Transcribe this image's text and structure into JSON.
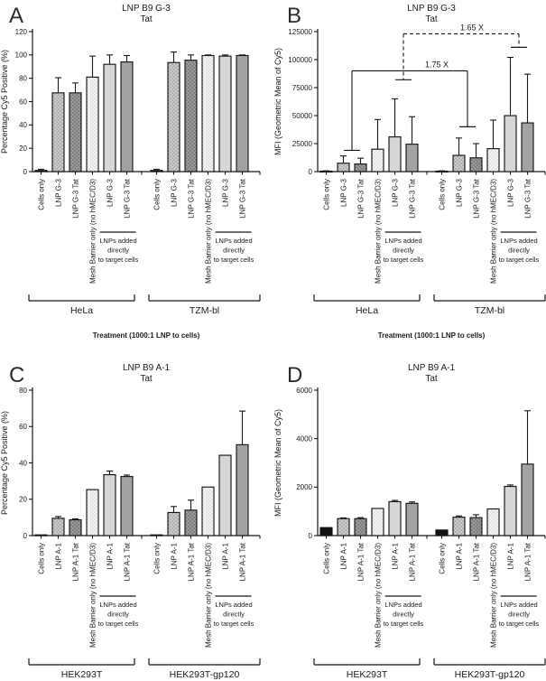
{
  "palette": {
    "outline": "#161616",
    "text": "#1a1a1a",
    "black_fill": "#121212",
    "dot_light_bg": "#cbcbcb",
    "dot_light_dot": "#8f8f8f",
    "dot_dark_bg": "#9a9a9a",
    "dot_dark_dot": "#5f5f5f",
    "stipple_bg": "#f5f5f5",
    "stipple_dot": "#cccccc",
    "gray_light": "#d6d6d6",
    "gray_mid": "#a2a2a2"
  },
  "chart_data": [
    {
      "type": "bar",
      "panel_letter": "A",
      "title": "LNP B9 G-3",
      "subtitle": "Tat",
      "ylabel": "Percentage Cy5 Positive (%)",
      "xlabel": "Treatment (1000:1 LNP to cells)",
      "ylim": [
        0,
        120
      ],
      "ytick_step": 20,
      "subcaption_lines": [
        "LNPs added",
        "directly",
        "to target cells"
      ],
      "groups": [
        {
          "name": "HeLa",
          "bars": [
            {
              "label": "Cells only",
              "value": 1,
              "err": 1,
              "style": "black"
            },
            {
              "label": "LNP G-3",
              "value": 67.5,
              "err": 13,
              "style": "dot_light"
            },
            {
              "label": "LNP G-3 Tat",
              "value": 67.5,
              "err": 8.5,
              "style": "dot_dark"
            },
            {
              "label": "Mesh Barrier only (no hMEC/D3)",
              "value": 81,
              "err": 18,
              "style": "stipple"
            },
            {
              "label": "LNP G-3",
              "value": 92,
              "err": 8,
              "style": "gray_light"
            },
            {
              "label": "LNP G-3 Tat",
              "value": 94,
              "err": 5.5,
              "style": "gray_mid"
            }
          ]
        },
        {
          "name": "TZM-bl",
          "bars": [
            {
              "label": "Cells only",
              "value": 1,
              "err": 1,
              "style": "black"
            },
            {
              "label": "LNP G-3",
              "value": 93.5,
              "err": 9,
              "style": "dot_light"
            },
            {
              "label": "LNP G-3 Tat",
              "value": 95.5,
              "err": 4.5,
              "style": "dot_dark"
            },
            {
              "label": "Mesh Barrier only (no hMEC/D3)",
              "value": 99.5,
              "err": 0.5,
              "style": "stipple"
            },
            {
              "label": "LNP G-3",
              "value": 99,
              "err": 1,
              "style": "gray_light"
            },
            {
              "label": "LNP G-3 Tat",
              "value": 99.5,
              "err": 0.5,
              "style": "gray_mid"
            }
          ]
        }
      ]
    },
    {
      "type": "bar",
      "panel_letter": "B",
      "title": "LNP B9 G-3",
      "subtitle": "Tat",
      "ylabel": "MFI (Geometric Mean of Cy5)",
      "xlabel": "Treatment (1000:1 LNP to cells)",
      "ylim": [
        0,
        125000
      ],
      "ytick_step": 25000,
      "subcaption_lines": [
        "LNPs added",
        "directly",
        "to target cells"
      ],
      "groups": [
        {
          "name": "HeLa",
          "bars": [
            {
              "label": "Cells only",
              "value": 400,
              "err": 300,
              "style": "black"
            },
            {
              "label": "LNP G-3",
              "value": 7500,
              "err": 6500,
              "style": "dot_light"
            },
            {
              "label": "LNP G-3 Tat",
              "value": 6800,
              "err": 5200,
              "style": "dot_dark"
            },
            {
              "label": "Mesh Barrier only (no hMEC/D3)",
              "value": 20000,
              "err": 26500,
              "style": "stipple"
            },
            {
              "label": "LNP G-3",
              "value": 31000,
              "err": 34000,
              "style": "gray_light"
            },
            {
              "label": "LNP G-3 Tat",
              "value": 24500,
              "err": 24500,
              "style": "gray_mid"
            }
          ]
        },
        {
          "name": "TZM-bl",
          "bars": [
            {
              "label": "Cells only",
              "value": 400,
              "err": 300,
              "style": "black"
            },
            {
              "label": "LNP G-3",
              "value": 14500,
              "err": 15500,
              "style": "dot_light"
            },
            {
              "label": "LNP G-3 Tat",
              "value": 12300,
              "err": 12700,
              "style": "dot_dark"
            },
            {
              "label": "Mesh Barrier only (no hMEC/D3)",
              "value": 20500,
              "err": 25500,
              "style": "stipple"
            },
            {
              "label": "LNP G-3",
              "value": 50000,
              "err": 52000,
              "style": "gray_light"
            },
            {
              "label": "LNP G-3 Tat",
              "value": 43500,
              "err": 43500,
              "style": "gray_mid"
            }
          ]
        }
      ],
      "comparisons": [
        {
          "label": "1.75 X",
          "line": "solid",
          "from_bar": 1.5,
          "to_bar": 7.5,
          "y_top": 90000,
          "cap_from": 19000,
          "cap_to": 40000,
          "label_dx": 30
        },
        {
          "label": "1.65 X",
          "line": "dashed",
          "from_bar": 4.5,
          "to_bar": 10.5,
          "y_top": 123000,
          "cap_from": 82000,
          "cap_to": 111000,
          "label_dx": 12
        }
      ]
    },
    {
      "type": "bar",
      "panel_letter": "C",
      "title": "LNP B9 A-1",
      "subtitle": "Tat",
      "ylabel": "Percentage Cy5 Positive (%)",
      "ylim": [
        0,
        80
      ],
      "ytick_step": 20,
      "subcaption_lines": [
        "LNPs added",
        "directly",
        "to target cells"
      ],
      "groups": [
        {
          "name": "HEK293T",
          "bars": [
            {
              "label": "Cells only",
              "value": 0.4,
              "err": 0,
              "style": "black"
            },
            {
              "label": "LNP A-1",
              "value": 9.5,
              "err": 1,
              "style": "dot_light"
            },
            {
              "label": "LNP A-1 Tat",
              "value": 8.7,
              "err": 0.5,
              "style": "dot_dark"
            },
            {
              "label": "Mesh Barrier only (no hMEC/D3)",
              "value": 25.3,
              "err": 0,
              "style": "stipple"
            },
            {
              "label": "LNP A-1",
              "value": 33.5,
              "err": 2,
              "style": "gray_light"
            },
            {
              "label": "LNP A-1 Tat",
              "value": 32.5,
              "err": 0.8,
              "style": "gray_mid"
            }
          ]
        },
        {
          "name": "HEK293T-gp120",
          "bars": [
            {
              "label": "Cells only",
              "value": 0.4,
              "err": 0,
              "style": "black"
            },
            {
              "label": "LNP A-1",
              "value": 12.7,
              "err": 3.3,
              "style": "dot_light"
            },
            {
              "label": "LNP A-1 Tat",
              "value": 14,
              "err": 5.5,
              "style": "dot_dark"
            },
            {
              "label": "Mesh Barrier only (no hMEC/D3)",
              "value": 26.7,
              "err": 0,
              "style": "stipple"
            },
            {
              "label": "LNP A-1",
              "value": 44.2,
              "err": 0,
              "style": "gray_light"
            },
            {
              "label": "LNP A-1 Tat",
              "value": 50,
              "err": 18.5,
              "style": "gray_mid"
            }
          ]
        }
      ]
    },
    {
      "type": "bar",
      "panel_letter": "D",
      "title": "LNP B9 A-1",
      "subtitle": "Tat",
      "ylabel": "MFI (Geometric Mean of Cy5)",
      "ylim": [
        0,
        6000
      ],
      "ytick_step": 2000,
      "subcaption_lines": [
        "LNPs added",
        "directly",
        "to target cells"
      ],
      "groups": [
        {
          "name": "HEK293T",
          "bars": [
            {
              "label": "Cells only",
              "value": 330,
              "err": 0,
              "style": "black"
            },
            {
              "label": "LNP A-1",
              "value": 700,
              "err": 30,
              "style": "dot_light"
            },
            {
              "label": "LNP A-1 Tat",
              "value": 700,
              "err": 40,
              "style": "dot_dark"
            },
            {
              "label": "Mesh Barrier only (no hMEC/D3)",
              "value": 1120,
              "err": 0,
              "style": "stipple"
            },
            {
              "label": "LNP A-1",
              "value": 1400,
              "err": 50,
              "style": "gray_light"
            },
            {
              "label": "LNP A-1 Tat",
              "value": 1330,
              "err": 60,
              "style": "gray_mid"
            }
          ]
        },
        {
          "name": "HEK293T-gp120",
          "bars": [
            {
              "label": "Cells only",
              "value": 230,
              "err": 0,
              "style": "black"
            },
            {
              "label": "LNP A-1",
              "value": 760,
              "err": 50,
              "style": "dot_light"
            },
            {
              "label": "LNP A-1 Tat",
              "value": 740,
              "err": 120,
              "style": "dot_dark"
            },
            {
              "label": "Mesh Barrier only (no hMEC/D3)",
              "value": 1100,
              "err": 0,
              "style": "stipple"
            },
            {
              "label": "LNP A-1",
              "value": 2030,
              "err": 60,
              "style": "gray_light"
            },
            {
              "label": "LNP A-1 Tat",
              "value": 2950,
              "err": 2200,
              "style": "gray_mid"
            }
          ]
        }
      ]
    }
  ]
}
